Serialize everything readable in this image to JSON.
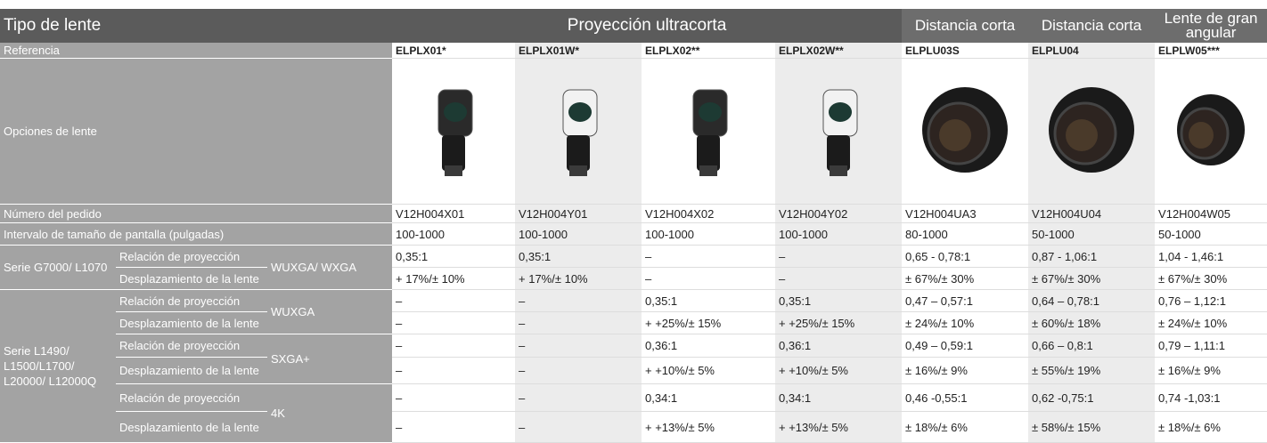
{
  "header": {
    "title": "Tipo de lente",
    "groups": [
      {
        "label": "Proyección ultracorta",
        "span": 4
      },
      {
        "label": "Distancia corta",
        "span": 1
      },
      {
        "label": "Distancia corta",
        "span": 1
      },
      {
        "label": "Lente de gran angular",
        "span": 1
      }
    ]
  },
  "table": {
    "reference": {
      "label": "Referencia",
      "values": [
        "ELPLX01*",
        "ELPLX01W*",
        "ELPLX02**",
        "ELPLX02W**",
        "ELPLU03S",
        "ELPLU04",
        "ELPLW05***"
      ]
    },
    "options": {
      "label": "Opciones de lente"
    },
    "order": {
      "label": "Número del pedido",
      "values": [
        "V12H004X01",
        "V12H004Y01",
        "V12H004X02",
        "V12H004Y02",
        "V12H004UA3",
        "V12H004U04",
        "V12H004W05"
      ]
    },
    "range": {
      "label": "Intervalo de tamaño de pantalla (pulgadas)",
      "values": [
        "100-1000",
        "100-1000",
        "100-1000",
        "100-1000",
        "80-1000",
        "50-1000",
        "50-1000"
      ]
    },
    "series": [
      {
        "name": "Serie G7000/ L1070",
        "groups": [
          {
            "resolution": "WUXGA/ WXGA",
            "rows": [
              {
                "label": "Relación de proyección",
                "values": [
                  "0,35:1",
                  "0,35:1",
                  "–",
                  "–",
                  "0,65 - 0,78:1",
                  "0,87 - 1,06:1",
                  "1,04 - 1,46:1"
                ]
              },
              {
                "label": "Desplazamiento de la lente",
                "values": [
                  "+ 17%/± 10%",
                  "+ 17%/± 10%",
                  "–",
                  "–",
                  "± 67%/± 30%",
                  "± 67%/± 30%",
                  "± 67%/± 30%"
                ]
              }
            ]
          }
        ]
      },
      {
        "name": "Serie L1490/ L1500/L1700/ L20000/ L12000Q",
        "groups": [
          {
            "resolution": "WUXGA",
            "rows": [
              {
                "label": "Relación de proyección",
                "values": [
                  "–",
                  "–",
                  "0,35:1",
                  "0,35:1",
                  "0,47 – 0,57:1",
                  "0,64 – 0,78:1",
                  "0,76 – 1,12:1"
                ]
              },
              {
                "label": "Desplazamiento de la lente",
                "values": [
                  "–",
                  "–",
                  "+ +25%/± 15%",
                  "+ +25%/± 15%",
                  "± 24%/± 10%",
                  "± 60%/± 18%",
                  "± 24%/± 10%"
                ]
              }
            ]
          },
          {
            "resolution": "SXGA+",
            "rows": [
              {
                "label": "Relación de proyección",
                "values": [
                  "–",
                  "–",
                  "0,36:1",
                  "0,36:1",
                  "0,49 – 0,59:1",
                  "0,66 – 0,8:1",
                  "0,79 – 1,11:1"
                ]
              },
              {
                "label": "Desplazamiento de la lente",
                "values": [
                  "–",
                  "–",
                  "+ +10%/± 5%",
                  "+ +10%/± 5%",
                  "± 16%/± 9%",
                  "± 55%/± 19%",
                  "± 16%/± 9%"
                ]
              }
            ]
          },
          {
            "resolution": "4K",
            "rows": [
              {
                "label": "Relación de proyección",
                "values": [
                  "–",
                  "–",
                  "0,34:1",
                  "0,34:1",
                  "0,46 -0,55:1",
                  "0,62 -0,75:1",
                  "0,74 -1,03:1"
                ]
              },
              {
                "label": "Desplazamiento de la lente",
                "values": [
                  "–",
                  "–",
                  "+ +13%/± 5%",
                  "+ +13%/± 5%",
                  "± 18%/± 6%",
                  "± 58%/± 15%",
                  "± 18%/± 6%"
                ]
              }
            ]
          }
        ]
      }
    ]
  }
}
